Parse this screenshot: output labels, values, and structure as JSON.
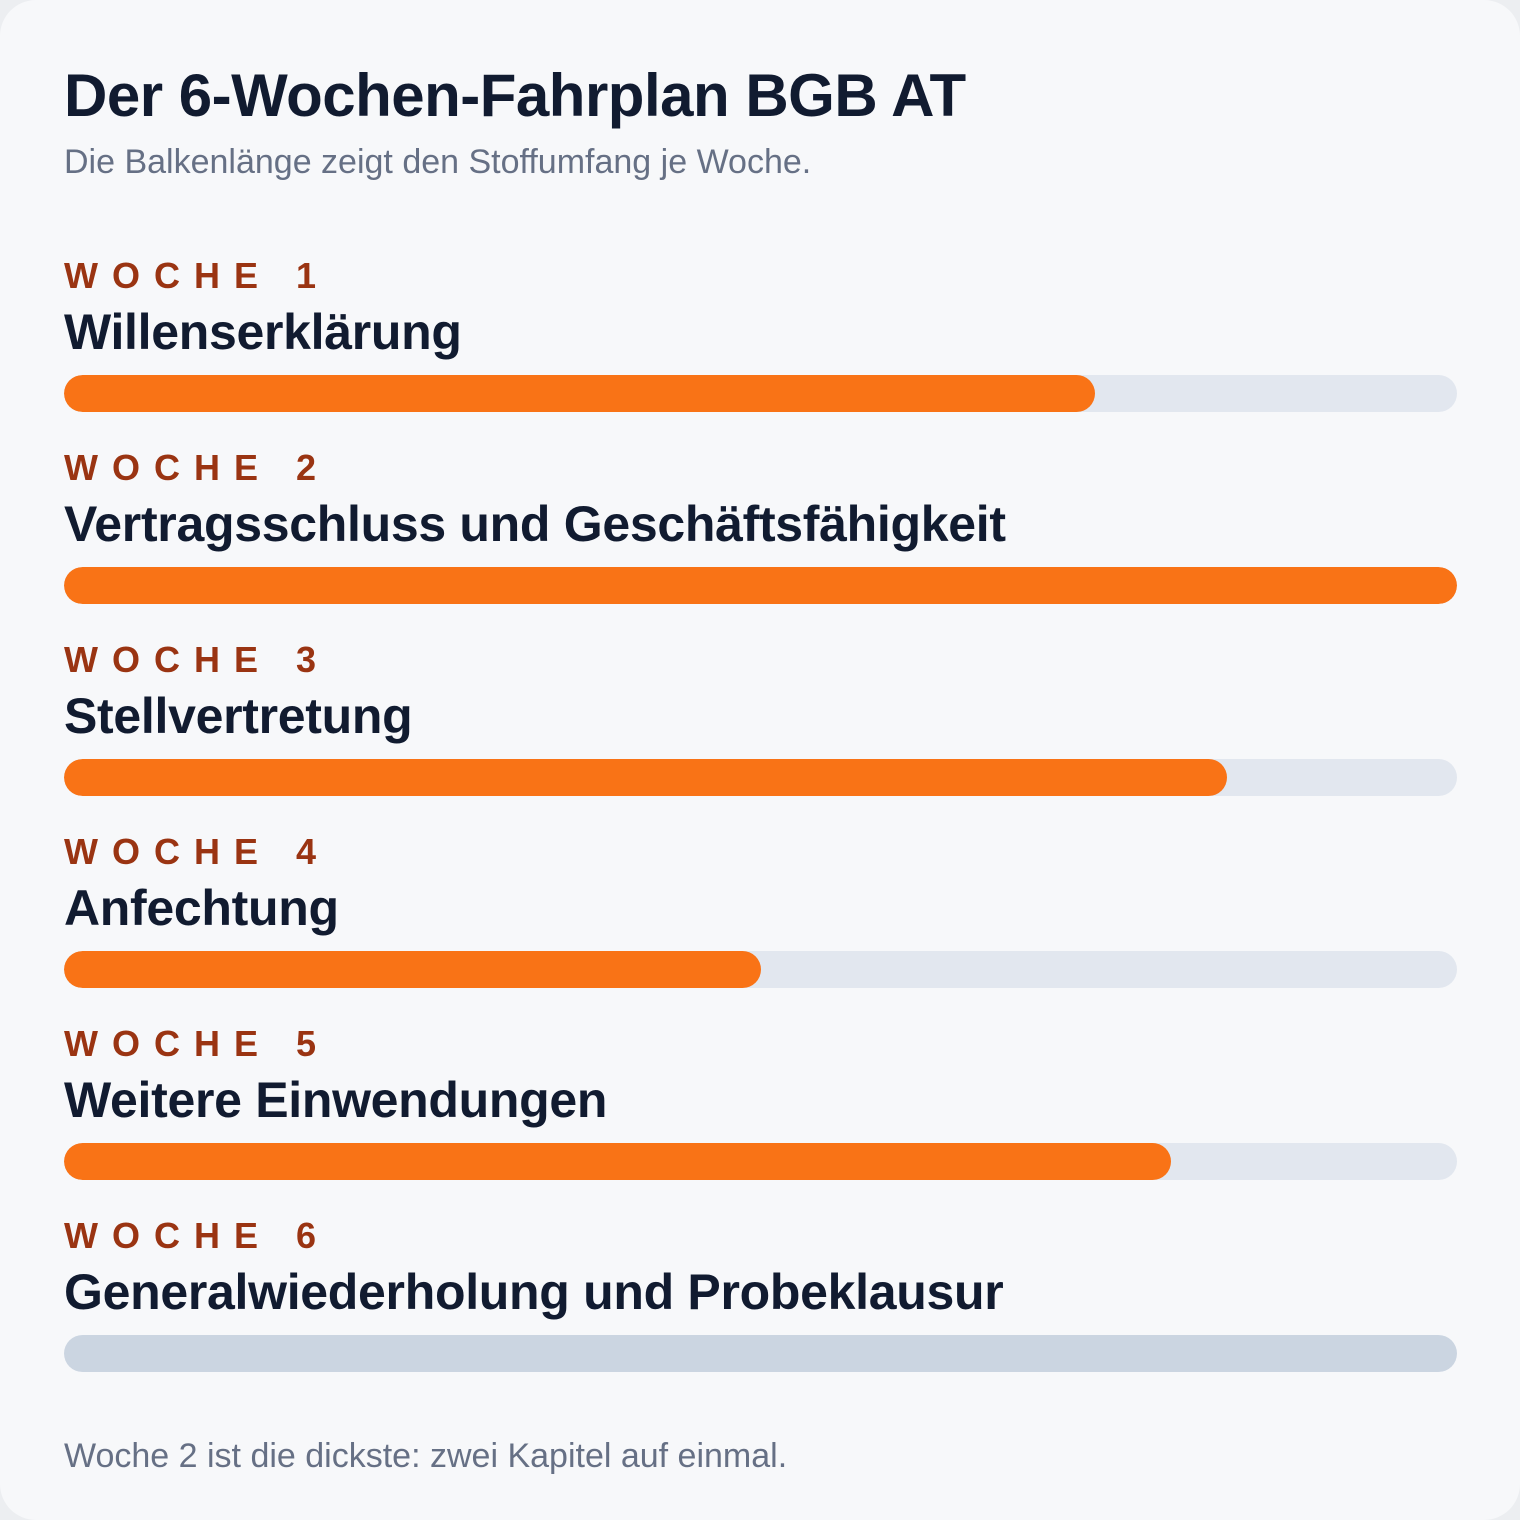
{
  "title": "Der 6-Wochen-Fahrplan BGB AT",
  "subtitle": "Die Balkenlänge zeigt den Stoffumfang je Woche.",
  "footnote": "Woche 2 ist die dickste: zwei Kapitel auf einmal.",
  "colors": {
    "accent_bar": "#f97316",
    "review_bar": "#cbd5e1",
    "track": "#e2e7ef",
    "week_label": "#9a3412",
    "heading": "#111b30",
    "muted_text": "#667085",
    "card_background": "#f7f8fa"
  },
  "chart_data": {
    "type": "bar",
    "orientation": "horizontal",
    "title": "Der 6-Wochen-Fahrplan BGB AT",
    "subtitle": "Die Balkenlänge zeigt den Stoffumfang je Woche.",
    "annotation": "Woche 2 ist die dickste: zwei Kapitel auf einmal.",
    "xlim": [
      0,
      1
    ],
    "grid": false,
    "legend": "none",
    "categories": [
      "WOCHE 1",
      "WOCHE 2",
      "WOCHE 3",
      "WOCHE 4",
      "WOCHE 5",
      "WOCHE 6"
    ],
    "topics": [
      "Willenserklärung",
      "Vertragsschluss und Geschäftsfähigkeit",
      "Stellvertretung",
      "Anfechtung",
      "Weitere Einwendungen",
      "Generalwiederholung und Probeklausur"
    ],
    "values": [
      0.74,
      1.0,
      0.835,
      0.5,
      0.795,
      1.0
    ],
    "bar_colors": [
      "#f97316",
      "#f97316",
      "#f97316",
      "#f97316",
      "#f97316",
      "#cbd5e1"
    ]
  }
}
